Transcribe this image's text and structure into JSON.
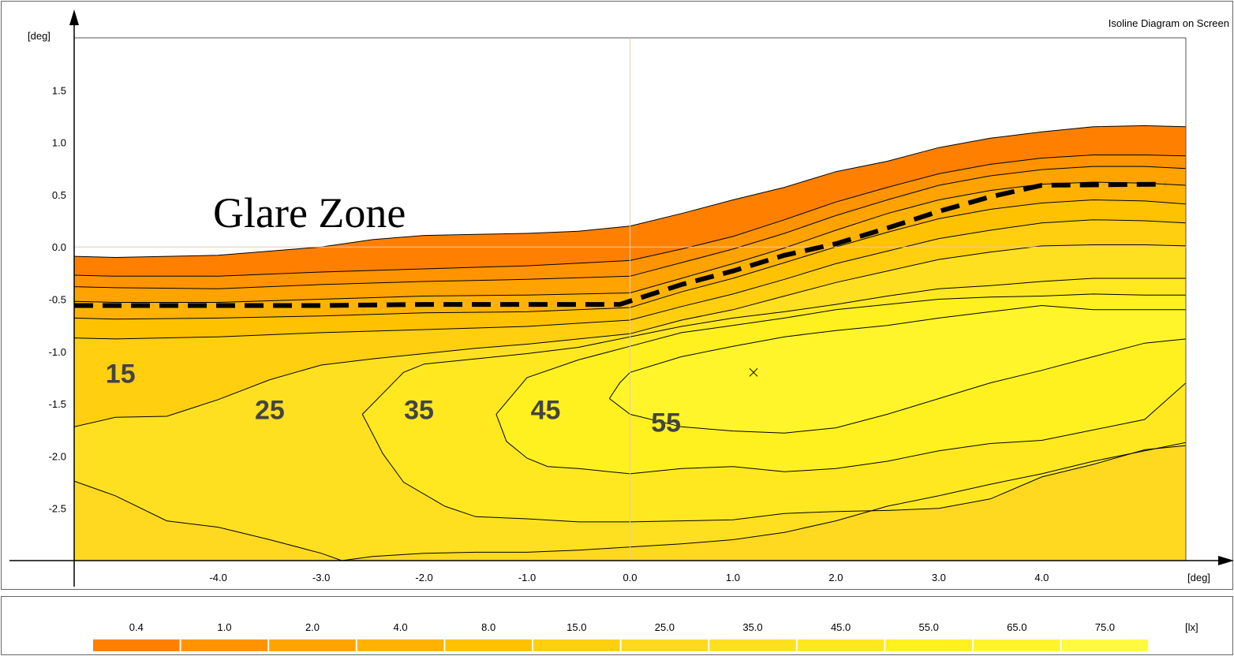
{
  "chart_data": {
    "type": "contour",
    "title": "Isoline Diagram on Screen",
    "xlabel": "[deg]",
    "ylabel": "[deg]",
    "xlim": [
      -5.4,
      5.4
    ],
    "ylim": [
      -3.0,
      2.0
    ],
    "x_ticks": [
      -4.0,
      -3.0,
      -2.0,
      -1.0,
      0.0,
      1.0,
      2.0,
      3.0,
      4.0
    ],
    "x_tick_labels": [
      "-4.0",
      "-3.0",
      "-2.0",
      "-1.0",
      "0.0",
      "1.0",
      "2.0",
      "3.0",
      "4.0"
    ],
    "y_ticks": [
      1.5,
      1.0,
      0.5,
      0.0,
      -0.5,
      -1.0,
      -1.5,
      -2.0,
      -2.5
    ],
    "y_tick_labels": [
      "1.5",
      "1.0",
      "0.5",
      "0.0",
      "-0.5",
      "-1.0",
      "-1.5",
      "-2.0",
      "-2.5"
    ],
    "annotation": "Glare Zone",
    "maximum_marker": {
      "x": 1.2,
      "y": -1.2
    },
    "cutoff_line": {
      "x": [
        -5.4,
        -4.0,
        -3.0,
        -2.0,
        -1.0,
        -0.1,
        0.5,
        1.0,
        1.5,
        2.0,
        2.5,
        3.0,
        3.5,
        4.0,
        5.2
      ],
      "y": [
        -0.56,
        -0.56,
        -0.56,
        -0.55,
        -0.55,
        -0.55,
        -0.36,
        -0.23,
        -0.08,
        0.03,
        0.18,
        0.34,
        0.48,
        0.59,
        0.6
      ]
    },
    "contour_labels": [
      {
        "text": "15",
        "x": -4.95,
        "y": -1.23
      },
      {
        "text": "25",
        "x": -3.5,
        "y": -1.58
      },
      {
        "text": "35",
        "x": -2.05,
        "y": -1.58
      },
      {
        "text": "45",
        "x": -0.82,
        "y": -1.58
      },
      {
        "text": "55",
        "x": 0.35,
        "y": -1.7
      }
    ],
    "isolines": [
      {
        "level": 0.4,
        "x": [
          -5.4,
          -5.0,
          -4.0,
          -3.0,
          -2.5,
          -2.0,
          -1.5,
          -1.0,
          -0.5,
          0.0,
          0.5,
          1.0,
          1.5,
          2.0,
          2.5,
          3.0,
          3.5,
          4.0,
          4.5,
          5.0,
          5.4
        ],
        "y": [
          -0.09,
          -0.1,
          -0.08,
          0.0,
          0.07,
          0.11,
          0.12,
          0.13,
          0.15,
          0.2,
          0.32,
          0.45,
          0.57,
          0.72,
          0.82,
          0.95,
          1.04,
          1.1,
          1.15,
          1.16,
          1.15
        ]
      },
      {
        "level": 1.0,
        "x": [
          -5.4,
          -5.0,
          -4.0,
          -3.0,
          -2.0,
          -1.0,
          0.0,
          0.5,
          1.0,
          1.5,
          2.0,
          2.5,
          3.0,
          3.5,
          4.0,
          4.5,
          5.0,
          5.4
        ],
        "y": [
          -0.27,
          -0.28,
          -0.28,
          -0.24,
          -0.21,
          -0.18,
          -0.13,
          -0.02,
          0.1,
          0.26,
          0.43,
          0.57,
          0.7,
          0.79,
          0.85,
          0.88,
          0.88,
          0.87
        ]
      },
      {
        "level": 2.0,
        "x": [
          -5.4,
          -5.0,
          -4.0,
          -3.0,
          -2.0,
          -1.0,
          0.0,
          0.5,
          1.0,
          1.5,
          2.0,
          2.5,
          3.0,
          3.5,
          4.0,
          4.5,
          5.0,
          5.4
        ],
        "y": [
          -0.38,
          -0.39,
          -0.4,
          -0.36,
          -0.33,
          -0.31,
          -0.28,
          -0.15,
          -0.02,
          0.13,
          0.3,
          0.45,
          0.59,
          0.68,
          0.74,
          0.77,
          0.77,
          0.75
        ]
      },
      {
        "level": 4.0,
        "x": [
          -5.4,
          -5.0,
          -4.0,
          -3.0,
          -2.0,
          -1.0,
          0.0,
          0.5,
          1.0,
          1.5,
          2.0,
          2.5,
          3.0,
          3.5,
          4.0,
          4.5,
          5.0,
          5.4
        ],
        "y": [
          -0.52,
          -0.53,
          -0.53,
          -0.5,
          -0.47,
          -0.46,
          -0.44,
          -0.3,
          -0.16,
          -0.01,
          0.16,
          0.32,
          0.45,
          0.54,
          0.6,
          0.62,
          0.61,
          0.59
        ]
      },
      {
        "level": 8.0,
        "x": [
          -5.4,
          -5.0,
          -4.0,
          -3.0,
          -2.0,
          -1.0,
          0.0,
          0.5,
          1.0,
          1.5,
          2.0,
          2.5,
          3.0,
          3.5,
          4.0,
          4.5,
          5.0,
          5.4
        ],
        "y": [
          -0.68,
          -0.69,
          -0.68,
          -0.66,
          -0.63,
          -0.62,
          -0.58,
          -0.43,
          -0.3,
          -0.15,
          0.0,
          0.14,
          0.27,
          0.36,
          0.42,
          0.45,
          0.44,
          0.41
        ]
      },
      {
        "level": 15.0,
        "x": [
          -5.4,
          -5.0,
          -4.0,
          -3.0,
          -2.0,
          -1.0,
          0.0,
          0.5,
          1.0,
          1.5,
          2.0,
          2.5,
          3.0,
          3.5,
          4.0,
          4.5,
          5.0,
          5.4
        ],
        "y": [
          -0.87,
          -0.88,
          -0.86,
          -0.82,
          -0.79,
          -0.76,
          -0.7,
          -0.57,
          -0.45,
          -0.31,
          -0.16,
          -0.04,
          0.08,
          0.16,
          0.23,
          0.26,
          0.25,
          0.23
        ]
      },
      {
        "level": 25.0,
        "x": [
          -5.4,
          -5.0,
          -4.5,
          -4.0,
          -3.5,
          -3.0,
          -2.5,
          -2.0,
          -1.5,
          -1.0,
          -0.5,
          0.0,
          0.5,
          1.0,
          1.5,
          2.0,
          2.5,
          3.0,
          3.5,
          4.0,
          4.5,
          5.0,
          5.4
        ],
        "y": [
          -1.72,
          -1.63,
          -1.62,
          -1.46,
          -1.27,
          -1.13,
          -1.07,
          -1.02,
          -0.97,
          -0.93,
          -0.88,
          -0.83,
          -0.7,
          -0.6,
          -0.47,
          -0.34,
          -0.23,
          -0.12,
          -0.05,
          0.01,
          0.02,
          0.02,
          0.01
        ]
      },
      {
        "level": 35.0,
        "x": [
          -5.4,
          -5.0,
          -4.5,
          -4.0,
          -3.5,
          -3.0,
          -2.8,
          -2.5,
          -2.0,
          -1.5,
          -1.0,
          -0.5,
          0.0,
          0.5,
          1.0,
          1.5,
          2.0,
          2.5,
          3.0,
          3.5,
          4.0,
          4.5,
          5.0,
          5.4
        ],
        "y": [
          -2.24,
          -2.38,
          -2.62,
          -2.68,
          -2.8,
          -2.93,
          -3.0,
          -2.96,
          -2.93,
          -2.92,
          -2.92,
          -2.9,
          -2.87,
          -2.84,
          -2.8,
          -2.73,
          -2.62,
          -2.48,
          -2.38,
          -2.27,
          -2.17,
          -2.05,
          -1.95,
          -1.87
        ]
      },
      {
        "level": 45.0,
        "x": [
          -2.6,
          -2.4,
          -2.2,
          -1.8,
          -1.5,
          -1.0,
          -0.5,
          0.0,
          0.5,
          1.0,
          1.5,
          2.0,
          2.5,
          3.0,
          3.5,
          4.0,
          4.5,
          5.0,
          5.4
        ],
        "y": [
          -1.6,
          -1.98,
          -2.25,
          -2.48,
          -2.58,
          -2.6,
          -2.63,
          -2.63,
          -2.62,
          -2.61,
          -2.55,
          -2.53,
          -2.52,
          -2.5,
          -2.41,
          -2.2,
          -2.08,
          -1.94,
          -1.9
        ]
      },
      {
        "level": 45.0,
        "x": [
          -2.6,
          -2.2,
          -2.0,
          -1.5,
          -1.0,
          -0.5,
          0.0,
          0.5,
          1.0,
          1.5,
          2.0,
          2.5,
          3.0,
          3.5,
          4.0,
          4.5,
          5.0,
          5.4
        ],
        "y": [
          -1.6,
          -1.2,
          -1.12,
          -1.07,
          -1.02,
          -0.96,
          -0.86,
          -0.76,
          -0.68,
          -0.62,
          -0.55,
          -0.47,
          -0.4,
          -0.37,
          -0.33,
          -0.3,
          -0.3,
          -0.3
        ]
      },
      {
        "level": 55.0,
        "x": [
          -1.3,
          -1.2,
          -1.0,
          -0.8,
          -0.5,
          0.0,
          0.5,
          1.0,
          1.5,
          2.0,
          2.5,
          3.0,
          3.5,
          4.0,
          4.5,
          5.0,
          5.4
        ],
        "y": [
          -1.6,
          -1.86,
          -2.02,
          -2.1,
          -2.12,
          -2.17,
          -2.12,
          -2.1,
          -2.15,
          -2.12,
          -2.05,
          -1.95,
          -1.88,
          -1.85,
          -1.75,
          -1.65,
          -1.3
        ]
      },
      {
        "level": 55.0,
        "x": [
          -1.3,
          -1.0,
          -0.5,
          0.0,
          0.5,
          1.0,
          1.5,
          2.0,
          2.5,
          3.0,
          3.5,
          4.0,
          4.5,
          5.0,
          5.4
        ],
        "y": [
          -1.6,
          -1.25,
          -1.08,
          -0.95,
          -0.82,
          -0.75,
          -0.68,
          -0.6,
          -0.55,
          -0.5,
          -0.48,
          -0.47,
          -0.45,
          -0.46,
          -0.46
        ]
      },
      {
        "level": 65.0,
        "x": [
          -0.2,
          -0.1,
          0.0,
          0.5,
          1.0,
          1.5,
          2.0,
          2.5,
          3.0,
          3.5,
          4.0,
          4.5,
          5.0,
          5.4
        ],
        "y": [
          -1.45,
          -1.3,
          -1.2,
          -1.05,
          -0.95,
          -0.86,
          -0.8,
          -0.75,
          -0.68,
          -0.62,
          -0.56,
          -0.6,
          -0.6,
          -0.6
        ]
      },
      {
        "level": 65.0,
        "x": [
          -0.2,
          0.0,
          0.5,
          1.0,
          1.5,
          2.0,
          2.5,
          3.0,
          3.5,
          4.0,
          4.5,
          5.0,
          5.4
        ],
        "y": [
          -1.45,
          -1.6,
          -1.72,
          -1.76,
          -1.78,
          -1.73,
          -1.6,
          -1.45,
          -1.3,
          -1.18,
          -1.05,
          -0.92,
          -0.88
        ]
      }
    ]
  },
  "legend": {
    "unit": "[lx]",
    "levels": [
      "0.4",
      "1.0",
      "2.0",
      "4.0",
      "8.0",
      "15.0",
      "25.0",
      "35.0",
      "45.0",
      "55.0",
      "65.0",
      "75.0"
    ],
    "colors": [
      "#FF8000",
      "#FF9400",
      "#FFA300",
      "#FFB300",
      "#FFC200",
      "#FFCF10",
      "#FFD820",
      "#FFE020",
      "#FFE820",
      "#FFF020",
      "#FFF52A",
      "#FFFA40"
    ]
  }
}
